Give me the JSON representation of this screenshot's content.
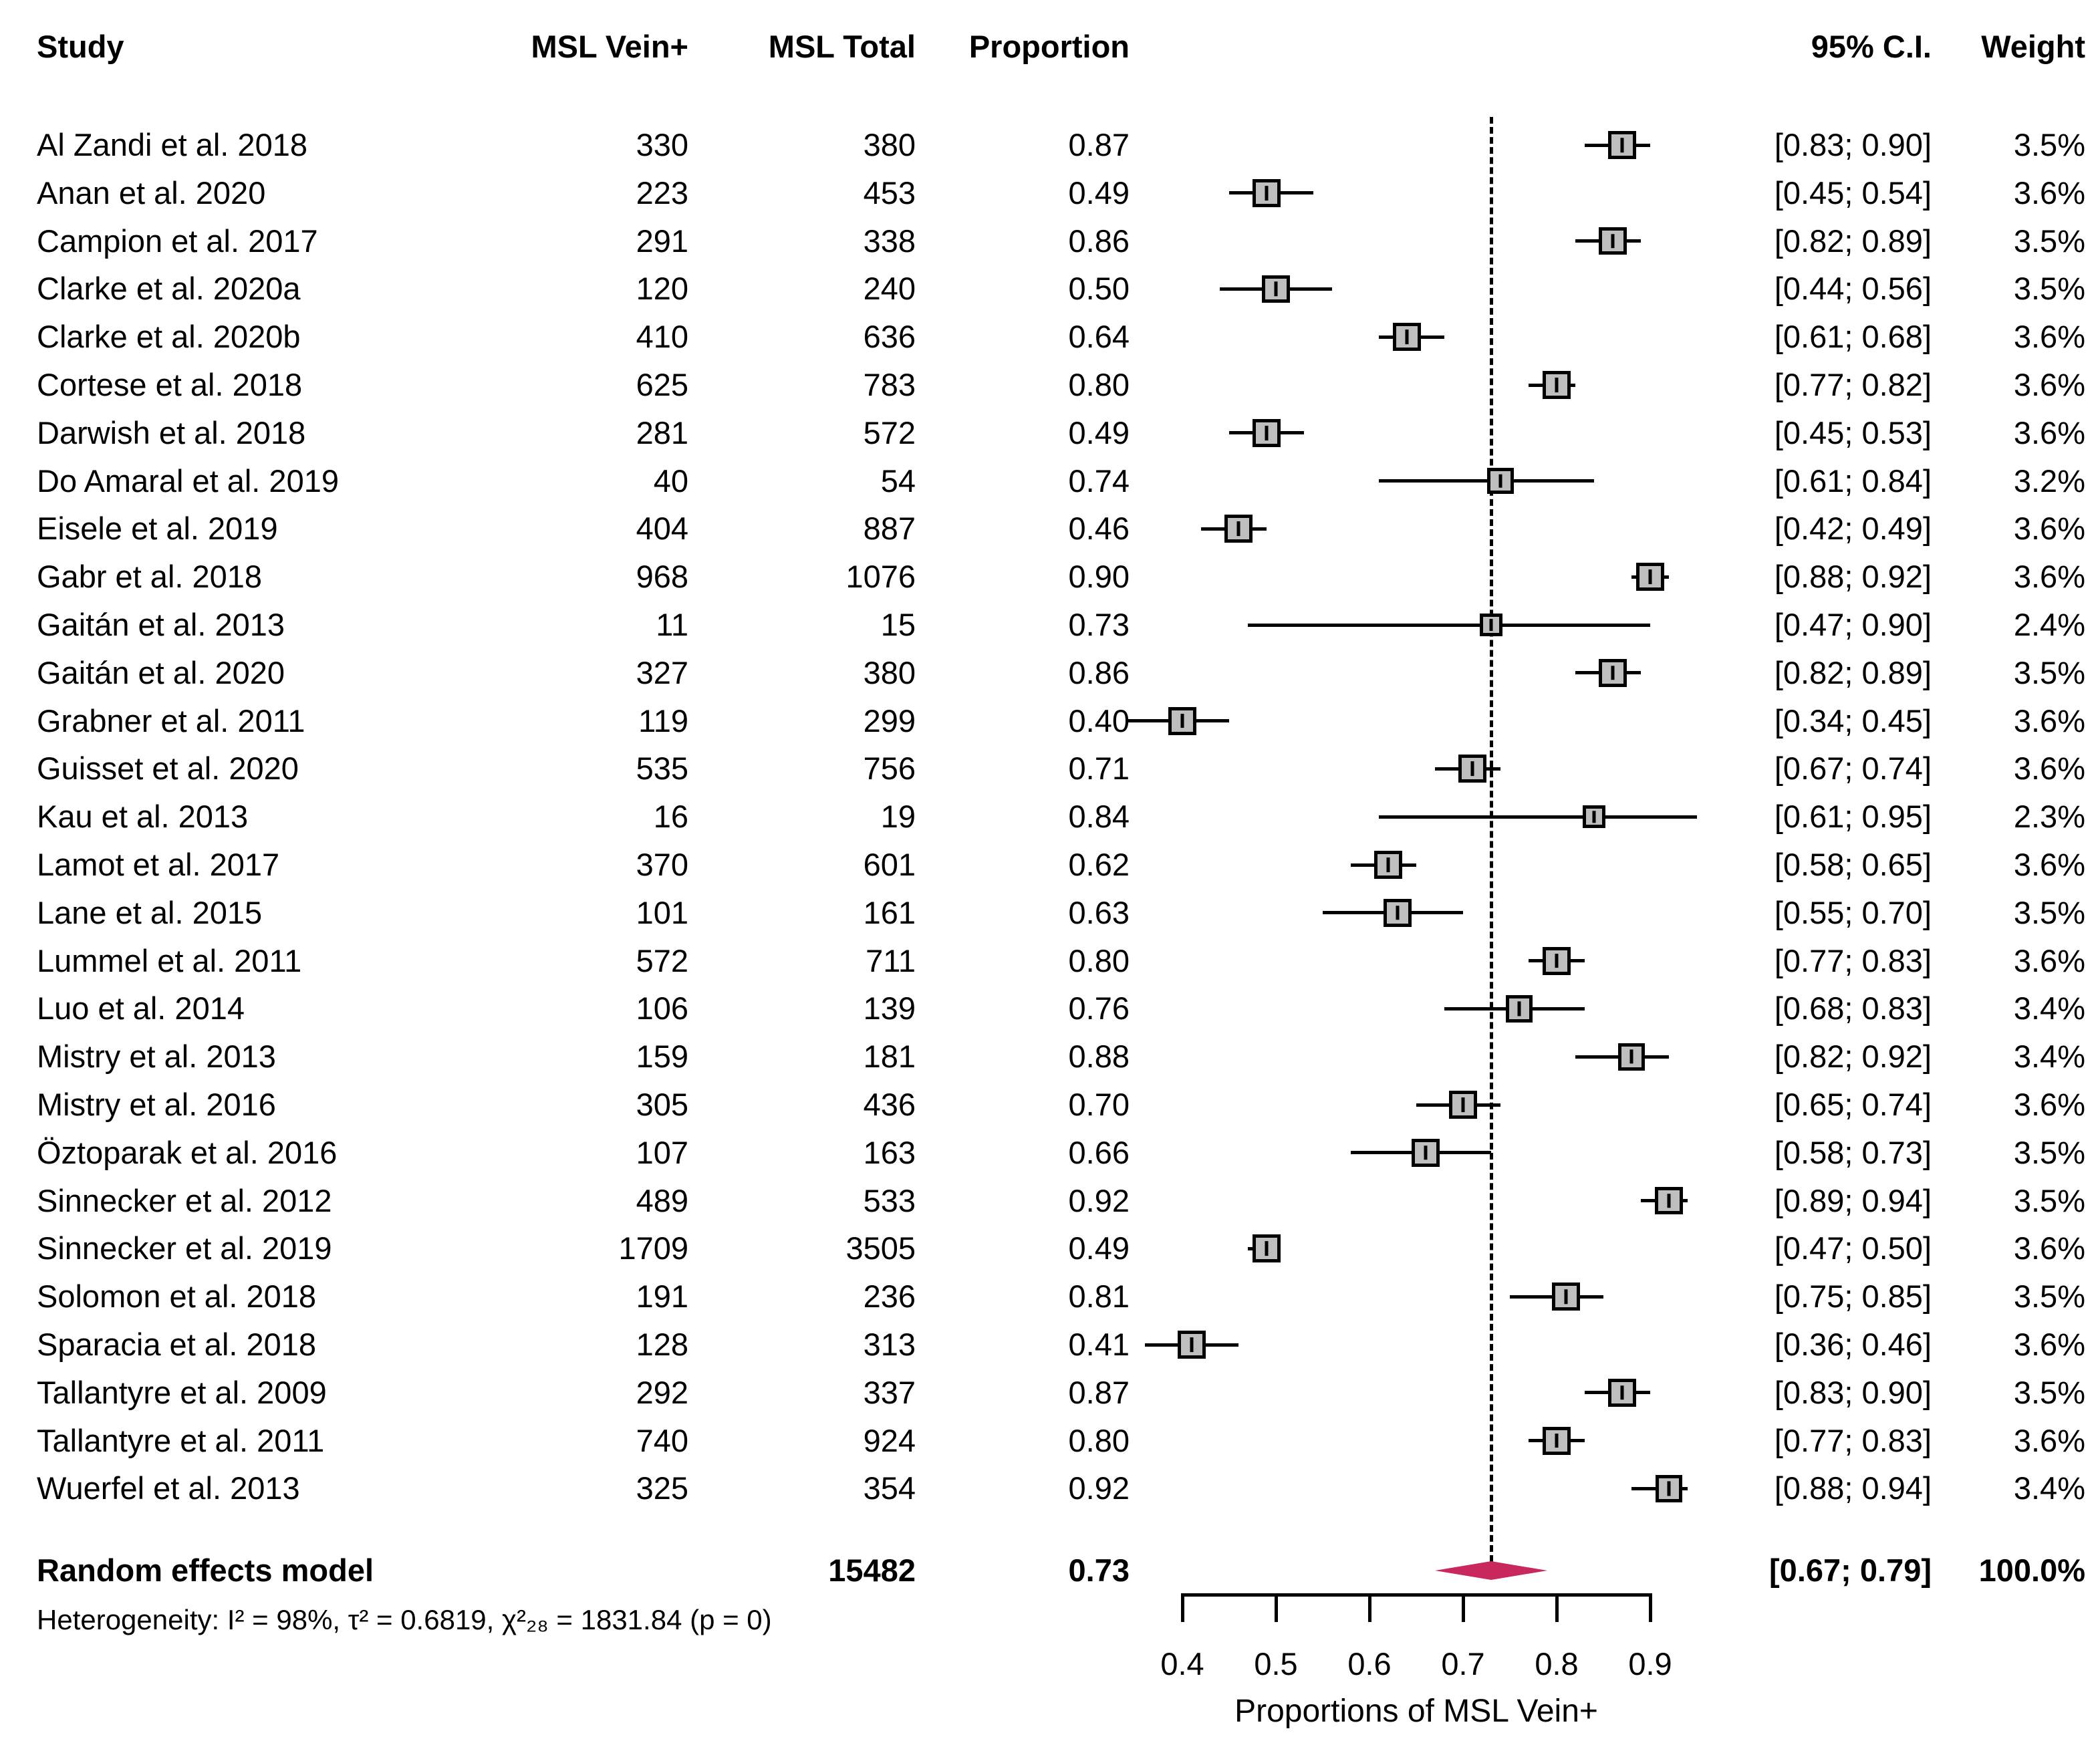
{
  "header": {
    "study": "Study",
    "vein": "MSL Vein+",
    "total": "MSL Total",
    "proportion": "Proportion",
    "ci": "95% C.I.",
    "weight": "Weight"
  },
  "chart_data": {
    "type": "forest",
    "xlabel": "Proportions of MSL Vein+",
    "x_ticks": [
      "0.4",
      "0.5",
      "0.6",
      "0.7",
      "0.8",
      "0.9"
    ],
    "xlim": [
      0.4,
      0.9
    ],
    "dashed_line_at": 0.73,
    "grid": false,
    "studies": [
      {
        "name": "Al Zandi et al. 2018",
        "vein": "330",
        "total": "380",
        "proportion": "0.87",
        "est": 0.87,
        "lo": 0.83,
        "hi": 0.9,
        "ci_text": "[0.83; 0.90]",
        "weight": "3.5%",
        "w": 3.5
      },
      {
        "name": "Anan et al. 2020",
        "vein": "223",
        "total": "453",
        "proportion": "0.49",
        "est": 0.49,
        "lo": 0.45,
        "hi": 0.54,
        "ci_text": "[0.45; 0.54]",
        "weight": "3.6%",
        "w": 3.6
      },
      {
        "name": "Campion et al. 2017",
        "vein": "291",
        "total": "338",
        "proportion": "0.86",
        "est": 0.86,
        "lo": 0.82,
        "hi": 0.89,
        "ci_text": "[0.82; 0.89]",
        "weight": "3.5%",
        "w": 3.5
      },
      {
        "name": "Clarke et al. 2020a",
        "vein": "120",
        "total": "240",
        "proportion": "0.50",
        "est": 0.5,
        "lo": 0.44,
        "hi": 0.56,
        "ci_text": "[0.44; 0.56]",
        "weight": "3.5%",
        "w": 3.5
      },
      {
        "name": "Clarke et al. 2020b",
        "vein": "410",
        "total": "636",
        "proportion": "0.64",
        "est": 0.64,
        "lo": 0.61,
        "hi": 0.68,
        "ci_text": "[0.61; 0.68]",
        "weight": "3.6%",
        "w": 3.6
      },
      {
        "name": "Cortese et al. 2018",
        "vein": "625",
        "total": "783",
        "proportion": "0.80",
        "est": 0.8,
        "lo": 0.77,
        "hi": 0.82,
        "ci_text": "[0.77; 0.82]",
        "weight": "3.6%",
        "w": 3.6
      },
      {
        "name": "Darwish et al. 2018",
        "vein": "281",
        "total": "572",
        "proportion": "0.49",
        "est": 0.49,
        "lo": 0.45,
        "hi": 0.53,
        "ci_text": "[0.45; 0.53]",
        "weight": "3.6%",
        "w": 3.6
      },
      {
        "name": "Do Amaral et al. 2019",
        "vein": "40",
        "total": "54",
        "proportion": "0.74",
        "est": 0.74,
        "lo": 0.61,
        "hi": 0.84,
        "ci_text": "[0.61; 0.84]",
        "weight": "3.2%",
        "w": 3.2
      },
      {
        "name": "Eisele et al. 2019",
        "vein": "404",
        "total": "887",
        "proportion": "0.46",
        "est": 0.46,
        "lo": 0.42,
        "hi": 0.49,
        "ci_text": "[0.42; 0.49]",
        "weight": "3.6%",
        "w": 3.6
      },
      {
        "name": "Gabr et al. 2018",
        "vein": "968",
        "total": "1076",
        "proportion": "0.90",
        "est": 0.9,
        "lo": 0.88,
        "hi": 0.92,
        "ci_text": "[0.88; 0.92]",
        "weight": "3.6%",
        "w": 3.6
      },
      {
        "name": "Gaitán et al. 2013",
        "vein": "11",
        "total": "15",
        "proportion": "0.73",
        "est": 0.73,
        "lo": 0.47,
        "hi": 0.9,
        "ci_text": "[0.47; 0.90]",
        "weight": "2.4%",
        "w": 2.4
      },
      {
        "name": "Gaitán et al. 2020",
        "vein": "327",
        "total": "380",
        "proportion": "0.86",
        "est": 0.86,
        "lo": 0.82,
        "hi": 0.89,
        "ci_text": "[0.82; 0.89]",
        "weight": "3.5%",
        "w": 3.5
      },
      {
        "name": "Grabner et al. 2011",
        "vein": "119",
        "total": "299",
        "proportion": "0.40",
        "est": 0.4,
        "lo": 0.34,
        "hi": 0.45,
        "ci_text": "[0.34; 0.45]",
        "weight": "3.6%",
        "w": 3.6
      },
      {
        "name": "Guisset et al. 2020",
        "vein": "535",
        "total": "756",
        "proportion": "0.71",
        "est": 0.71,
        "lo": 0.67,
        "hi": 0.74,
        "ci_text": "[0.67; 0.74]",
        "weight": "3.6%",
        "w": 3.6
      },
      {
        "name": "Kau et al. 2013",
        "vein": "16",
        "total": "19",
        "proportion": "0.84",
        "est": 0.84,
        "lo": 0.61,
        "hi": 0.95,
        "ci_text": "[0.61; 0.95]",
        "weight": "2.3%",
        "w": 2.3
      },
      {
        "name": "Lamot et al. 2017",
        "vein": "370",
        "total": "601",
        "proportion": "0.62",
        "est": 0.62,
        "lo": 0.58,
        "hi": 0.65,
        "ci_text": "[0.58; 0.65]",
        "weight": "3.6%",
        "w": 3.6
      },
      {
        "name": "Lane et al. 2015",
        "vein": "101",
        "total": "161",
        "proportion": "0.63",
        "est": 0.63,
        "lo": 0.55,
        "hi": 0.7,
        "ci_text": "[0.55; 0.70]",
        "weight": "3.5%",
        "w": 3.5
      },
      {
        "name": "Lummel et al. 2011",
        "vein": "572",
        "total": "711",
        "proportion": "0.80",
        "est": 0.8,
        "lo": 0.77,
        "hi": 0.83,
        "ci_text": "[0.77; 0.83]",
        "weight": "3.6%",
        "w": 3.6
      },
      {
        "name": "Luo et al. 2014",
        "vein": "106",
        "total": "139",
        "proportion": "0.76",
        "est": 0.76,
        "lo": 0.68,
        "hi": 0.83,
        "ci_text": "[0.68; 0.83]",
        "weight": "3.4%",
        "w": 3.4
      },
      {
        "name": "Mistry et al. 2013",
        "vein": "159",
        "total": "181",
        "proportion": "0.88",
        "est": 0.88,
        "lo": 0.82,
        "hi": 0.92,
        "ci_text": "[0.82; 0.92]",
        "weight": "3.4%",
        "w": 3.4
      },
      {
        "name": "Mistry et al. 2016",
        "vein": "305",
        "total": "436",
        "proportion": "0.70",
        "est": 0.7,
        "lo": 0.65,
        "hi": 0.74,
        "ci_text": "[0.65; 0.74]",
        "weight": "3.6%",
        "w": 3.6
      },
      {
        "name": "Öztoparak et al. 2016",
        "vein": "107",
        "total": "163",
        "proportion": "0.66",
        "est": 0.66,
        "lo": 0.58,
        "hi": 0.73,
        "ci_text": "[0.58; 0.73]",
        "weight": "3.5%",
        "w": 3.5
      },
      {
        "name": "Sinnecker et al. 2012",
        "vein": "489",
        "total": "533",
        "proportion": "0.92",
        "est": 0.92,
        "lo": 0.89,
        "hi": 0.94,
        "ci_text": "[0.89; 0.94]",
        "weight": "3.5%",
        "w": 3.5
      },
      {
        "name": "Sinnecker et al. 2019",
        "vein": "1709",
        "total": "3505",
        "proportion": "0.49",
        "est": 0.49,
        "lo": 0.47,
        "hi": 0.5,
        "ci_text": "[0.47; 0.50]",
        "weight": "3.6%",
        "w": 3.6
      },
      {
        "name": "Solomon et al. 2018",
        "vein": "191",
        "total": "236",
        "proportion": "0.81",
        "est": 0.81,
        "lo": 0.75,
        "hi": 0.85,
        "ci_text": "[0.75; 0.85]",
        "weight": "3.5%",
        "w": 3.5
      },
      {
        "name": "Sparacia et al. 2018",
        "vein": "128",
        "total": "313",
        "proportion": "0.41",
        "est": 0.41,
        "lo": 0.36,
        "hi": 0.46,
        "ci_text": "[0.36; 0.46]",
        "weight": "3.6%",
        "w": 3.6
      },
      {
        "name": "Tallantyre et al. 2009",
        "vein": "292",
        "total": "337",
        "proportion": "0.87",
        "est": 0.87,
        "lo": 0.83,
        "hi": 0.9,
        "ci_text": "[0.83; 0.90]",
        "weight": "3.5%",
        "w": 3.5
      },
      {
        "name": "Tallantyre et al. 2011",
        "vein": "740",
        "total": "924",
        "proportion": "0.80",
        "est": 0.8,
        "lo": 0.77,
        "hi": 0.83,
        "ci_text": "[0.77; 0.83]",
        "weight": "3.6%",
        "w": 3.6
      },
      {
        "name": "Wuerfel et al. 2013",
        "vein": "325",
        "total": "354",
        "proportion": "0.92",
        "est": 0.92,
        "lo": 0.88,
        "hi": 0.94,
        "ci_text": "[0.88; 0.94]",
        "weight": "3.4%",
        "w": 3.4
      }
    ],
    "summary": {
      "label": "Random effects model",
      "total": "15482",
      "proportion": "0.73",
      "est": 0.73,
      "lo": 0.67,
      "hi": 0.79,
      "ci_text": "[0.67; 0.79]",
      "weight": "100.0%"
    },
    "heterogeneity": "Heterogeneity: I² = 98%, τ² = 0.6819, χ²₂₈ = 1831.84 (p = 0)",
    "colors": {
      "diamond": "#C9285D",
      "square_fill": "#BEBEBE",
      "line": "#000000",
      "text": "#000000"
    }
  }
}
